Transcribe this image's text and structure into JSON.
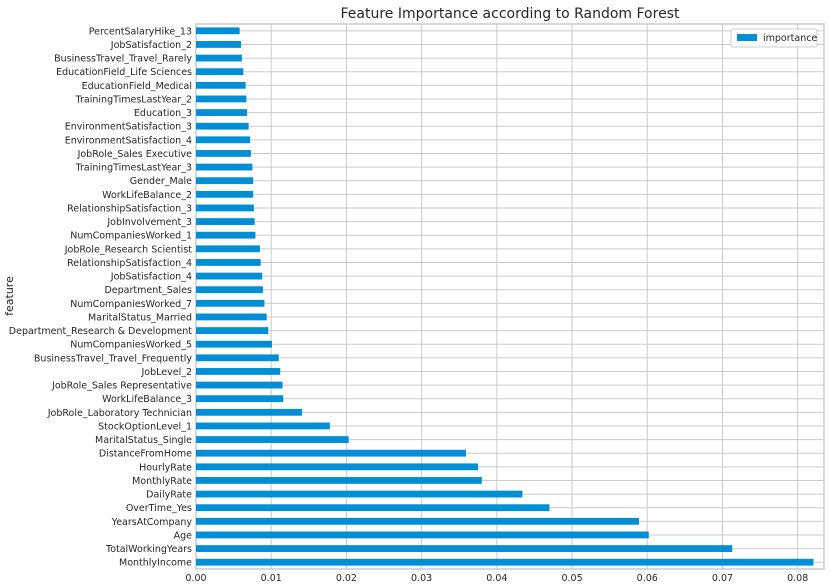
{
  "chart_data": {
    "type": "bar",
    "orientation": "horizontal",
    "title": "Feature Importance according to Random Forest",
    "ylabel": "feature",
    "xlabel": "",
    "xlim": [
      0,
      0.0835
    ],
    "xticks": [
      "0.00",
      "0.01",
      "0.02",
      "0.03",
      "0.04",
      "0.05",
      "0.06",
      "0.07",
      "0.08"
    ],
    "grid": true,
    "legend_position": "top-right",
    "color": "#008fd5",
    "series": [
      {
        "name": "importance",
        "categories": [
          "MonthlyIncome",
          "TotalWorkingYears",
          "Age",
          "YearsAtCompany",
          "OverTime_Yes",
          "DailyRate",
          "MonthlyRate",
          "HourlyRate",
          "DistanceFromHome",
          "MaritalStatus_Single",
          "StockOptionLevel_1",
          "JobRole_Laboratory Technician",
          "WorkLifeBalance_3",
          "JobRole_Sales Representative",
          "JobLevel_2",
          "BusinessTravel_Travel_Frequently",
          "NumCompaniesWorked_5",
          "Department_Research & Development",
          "MaritalStatus_Married",
          "NumCompaniesWorked_7",
          "Department_Sales",
          "JobSatisfaction_4",
          "RelationshipSatisfaction_4",
          "JobRole_Research Scientist",
          "NumCompaniesWorked_1",
          "JobInvolvement_3",
          "RelationshipSatisfaction_3",
          "WorkLifeBalance_2",
          "Gender_Male",
          "TrainingTimesLastYear_3",
          "JobRole_Sales Executive",
          "EnvironmentSatisfaction_4",
          "EnvironmentSatisfaction_3",
          "Education_3",
          "TrainingTimesLastYear_2",
          "EducationField_Medical",
          "EducationField_Life Sciences",
          "BusinessTravel_Travel_Rarely",
          "JobSatisfaction_2",
          "PercentSalaryHike_13"
        ],
        "values": [
          0.0821,
          0.0713,
          0.0602,
          0.0589,
          0.047,
          0.0434,
          0.038,
          0.0375,
          0.0359,
          0.0203,
          0.0178,
          0.0141,
          0.0116,
          0.0115,
          0.0112,
          0.011,
          0.0101,
          0.0096,
          0.0094,
          0.0091,
          0.0089,
          0.0088,
          0.0086,
          0.0085,
          0.0079,
          0.0078,
          0.0077,
          0.0076,
          0.0076,
          0.0075,
          0.0073,
          0.0072,
          0.007,
          0.0068,
          0.0067,
          0.0066,
          0.0063,
          0.0061,
          0.006,
          0.0058
        ]
      }
    ]
  }
}
